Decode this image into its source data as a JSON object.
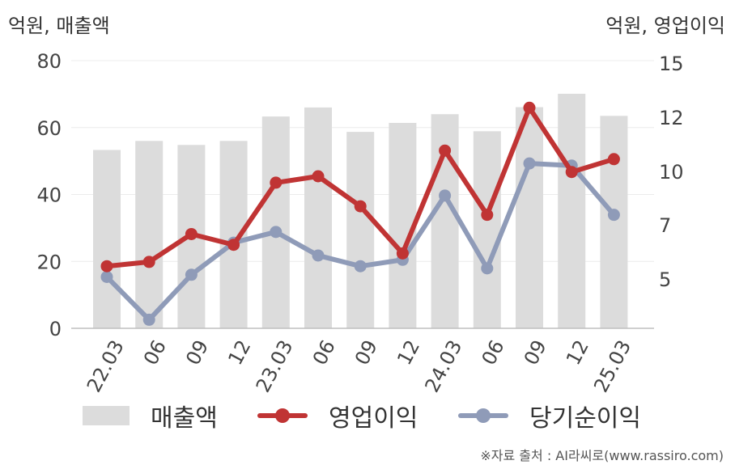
{
  "units": {
    "left": "억원, 매출액",
    "right": "억원, 영업이익"
  },
  "chart_data": {
    "type": "bar",
    "categories": [
      "22.03",
      "06",
      "09",
      "12",
      "23.03",
      "06",
      "09",
      "12",
      "24.03",
      "06",
      "09",
      "12",
      "25.03"
    ],
    "left_axis": {
      "ylim": [
        0,
        80
      ],
      "ticks": [
        "0",
        "20",
        "40",
        "60",
        "80"
      ]
    },
    "right_axis": {
      "ylim": [
        2.5,
        15
      ],
      "ticks": [
        "5",
        "7",
        "10",
        "12",
        "15"
      ]
    },
    "grid": true,
    "legend_position": "bottom",
    "series": [
      {
        "name": "매출액",
        "type": "bar",
        "axis": "left",
        "color": "#dcdcdc",
        "values": [
          53.3,
          56.0,
          54.8,
          56.0,
          63.3,
          66.0,
          58.7,
          61.4,
          64.0,
          58.9,
          66.1,
          70.1,
          63.5
        ]
      },
      {
        "name": "영업이익",
        "type": "line",
        "axis": "right",
        "color": "#c03434",
        "values": [
          5.4,
          5.6,
          6.9,
          6.4,
          9.3,
          9.6,
          8.2,
          6.0,
          10.8,
          7.8,
          12.8,
          9.8,
          10.4
        ]
      },
      {
        "name": "당기순이익",
        "type": "line",
        "axis": "right",
        "color": "#8f9bb8",
        "values": [
          4.9,
          2.9,
          5.0,
          6.5,
          7.0,
          5.9,
          5.4,
          5.7,
          8.7,
          5.3,
          10.2,
          10.1,
          7.8
        ]
      }
    ]
  },
  "source": "※자료 출처 : AI라씨로(www.rassiro.com)"
}
